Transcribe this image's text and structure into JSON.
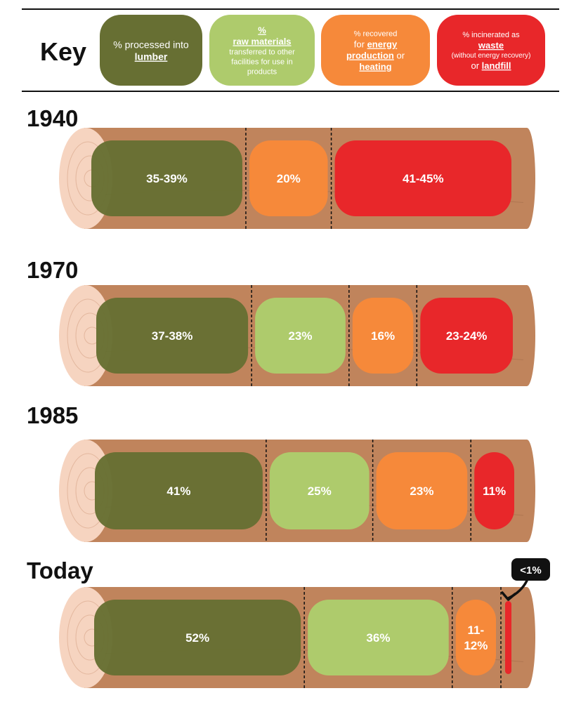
{
  "key": {
    "title": "Key",
    "items": [
      {
        "id": "lumber",
        "color": "#676F33",
        "lines": [
          [
            {
              "t": "% processed into",
              "u": false,
              "size": "lg"
            }
          ],
          [
            {
              "t": "lumber",
              "u": true,
              "size": "lg",
              "bold": true
            }
          ]
        ]
      },
      {
        "id": "raw",
        "color": "#AECB6C",
        "lines": [
          [
            {
              "t": "%",
              "u": true,
              "size": "md",
              "bold": true
            }
          ],
          [
            {
              "t": "raw materials",
              "u": true,
              "size": "md",
              "bold": true
            }
          ],
          [
            {
              "t": "transferred to other",
              "u": false,
              "size": "sm"
            }
          ],
          [
            {
              "t": "facilities for use in",
              "u": false,
              "size": "sm"
            }
          ],
          [
            {
              "t": "products",
              "u": false,
              "size": "sm"
            }
          ]
        ]
      },
      {
        "id": "energy",
        "color": "#F6893A",
        "lines": [
          [
            {
              "t": "% recovered",
              "u": false,
              "size": "sm"
            }
          ],
          [
            {
              "t": "for ",
              "u": false,
              "size": "md"
            },
            {
              "t": "energy",
              "u": true,
              "size": "md",
              "bold": true
            }
          ],
          [
            {
              "t": "production",
              "u": true,
              "size": "md",
              "bold": true
            },
            {
              "t": " or",
              "u": false,
              "size": "md"
            }
          ],
          [
            {
              "t": "heating",
              "u": true,
              "size": "md",
              "bold": true
            }
          ]
        ]
      },
      {
        "id": "waste",
        "color": "#E8272A",
        "lines": [
          [
            {
              "t": "% incinerated as",
              "u": false,
              "size": "sm"
            }
          ],
          [
            {
              "t": "waste",
              "u": true,
              "size": "md",
              "bold": true
            }
          ],
          [
            {
              "t": "(without energy recovery)",
              "u": false,
              "size": "xs"
            }
          ],
          [
            {
              "t": "or ",
              "u": false,
              "size": "md"
            },
            {
              "t": "landfill",
              "u": true,
              "size": "md",
              "bold": true
            }
          ]
        ]
      }
    ]
  },
  "chart_data": {
    "type": "bar",
    "orientation": "horizontal-stacked",
    "categories": [
      "1940",
      "1970",
      "1985",
      "Today"
    ],
    "series_keys": [
      "lumber",
      "raw",
      "energy",
      "waste"
    ],
    "rows": [
      {
        "year": "1940",
        "segments": [
          {
            "key": "lumber",
            "label": "35-39%",
            "value": 37
          },
          {
            "key": "energy",
            "label": "20%",
            "value": 20
          },
          {
            "key": "waste",
            "label": "41-45%",
            "value": 43
          }
        ]
      },
      {
        "year": "1970",
        "segments": [
          {
            "key": "lumber",
            "label": "37-38%",
            "value": 37.5
          },
          {
            "key": "raw",
            "label": "23%",
            "value": 23
          },
          {
            "key": "energy",
            "label": "16%",
            "value": 16
          },
          {
            "key": "waste",
            "label": "23-24%",
            "value": 23.5
          }
        ]
      },
      {
        "year": "1985",
        "segments": [
          {
            "key": "lumber",
            "label": "41%",
            "value": 41
          },
          {
            "key": "raw",
            "label": "25%",
            "value": 25
          },
          {
            "key": "energy",
            "label": "23%",
            "value": 23
          },
          {
            "key": "waste",
            "label": "11%",
            "value": 11
          }
        ]
      },
      {
        "year": "Today",
        "segments": [
          {
            "key": "lumber",
            "label": "52%",
            "value": 52
          },
          {
            "key": "raw",
            "label": "36%",
            "value": 36
          },
          {
            "key": "energy",
            "label": "11-12%",
            "value": 11.5
          },
          {
            "key": "waste",
            "label": "<1%",
            "value": 0.5,
            "callout": true
          }
        ]
      }
    ],
    "colors": {
      "lumber": "#676F33",
      "raw": "#AECB6C",
      "energy": "#F6893A",
      "waste": "#E8272A",
      "log": "#C0845C",
      "log_end": "#F6D4C0"
    }
  }
}
